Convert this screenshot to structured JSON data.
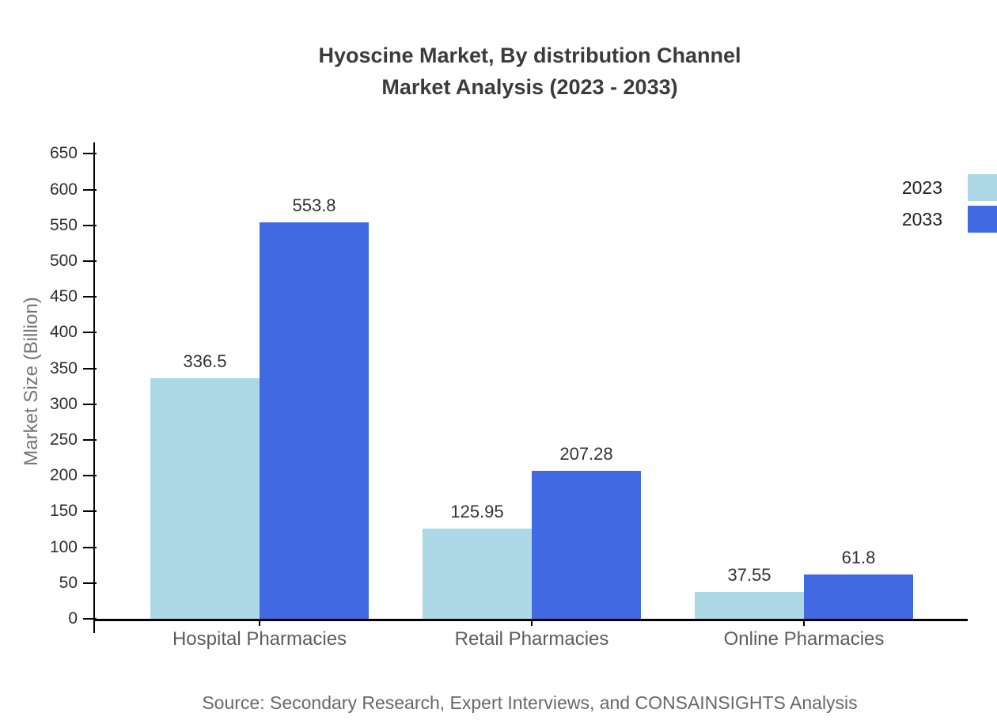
{
  "title": {
    "line1": "Hyoscine Market, By distribution Channel",
    "line2": "Market Analysis (2023 - 2033)"
  },
  "source_text": "Source: Secondary Research, Expert Interviews, and CONSAINSIGHTS Analysis",
  "colors": {
    "series_2023": "#ADD8E6",
    "series_2033": "#4169E1",
    "axis": "#000000"
  },
  "chart_data": {
    "type": "bar",
    "title": "Hyoscine Market, By distribution Channel Market Analysis (2023 - 2033)",
    "categories": [
      "Hospital Pharmacies",
      "Retail Pharmacies",
      "Online Pharmacies"
    ],
    "series": [
      {
        "name": "2023",
        "color": "#ADD8E6",
        "values": [
          336.5,
          125.95,
          37.55
        ]
      },
      {
        "name": "2033",
        "color": "#4169E1",
        "values": [
          553.8,
          207.28,
          61.8
        ]
      }
    ],
    "xlabel": "",
    "ylabel": "Market Size (Billion)",
    "ylim": [
      0,
      666
    ],
    "yticks": [
      0,
      50,
      100,
      150,
      200,
      250,
      300,
      350,
      400,
      450,
      500,
      550,
      600,
      650
    ],
    "grid": false,
    "legend_position": "top-right",
    "value_labels": true
  }
}
